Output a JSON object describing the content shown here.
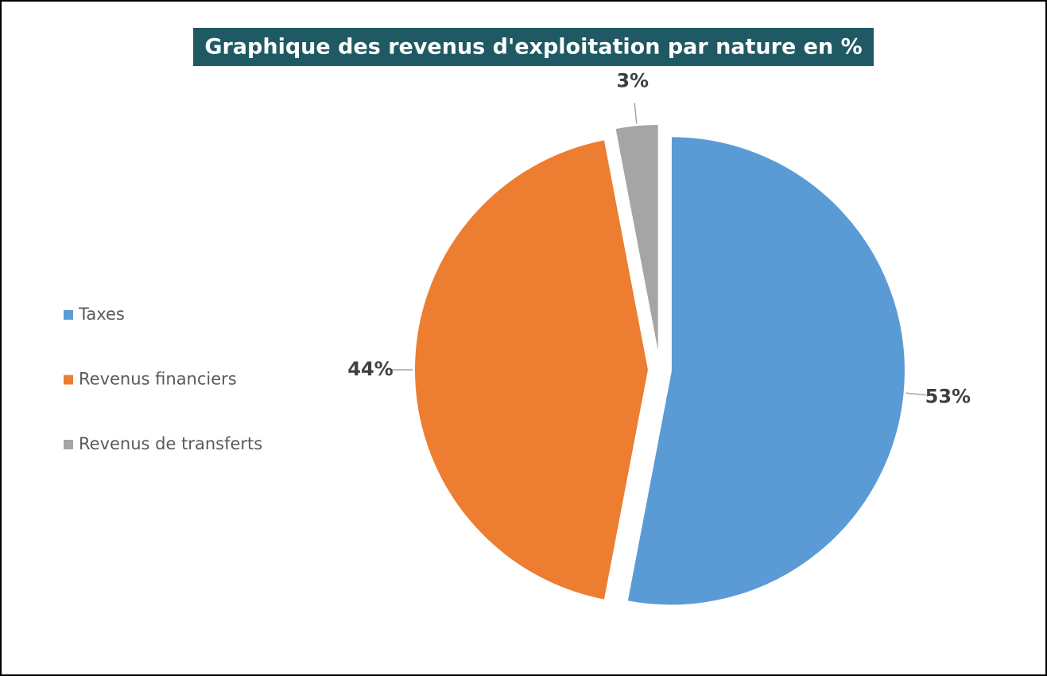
{
  "chart_data": {
    "type": "pie",
    "title": "Graphique des revenus d'exploitation par nature en %",
    "categories": [
      "Taxes",
      "Revenus financiers",
      "Revenus de transferts"
    ],
    "values": [
      53,
      44,
      3
    ],
    "value_labels": [
      "53%",
      "44%",
      "3%"
    ],
    "colors": [
      "#5b9bd5",
      "#ed7d31",
      "#a5a5a5"
    ],
    "legend": "left"
  }
}
